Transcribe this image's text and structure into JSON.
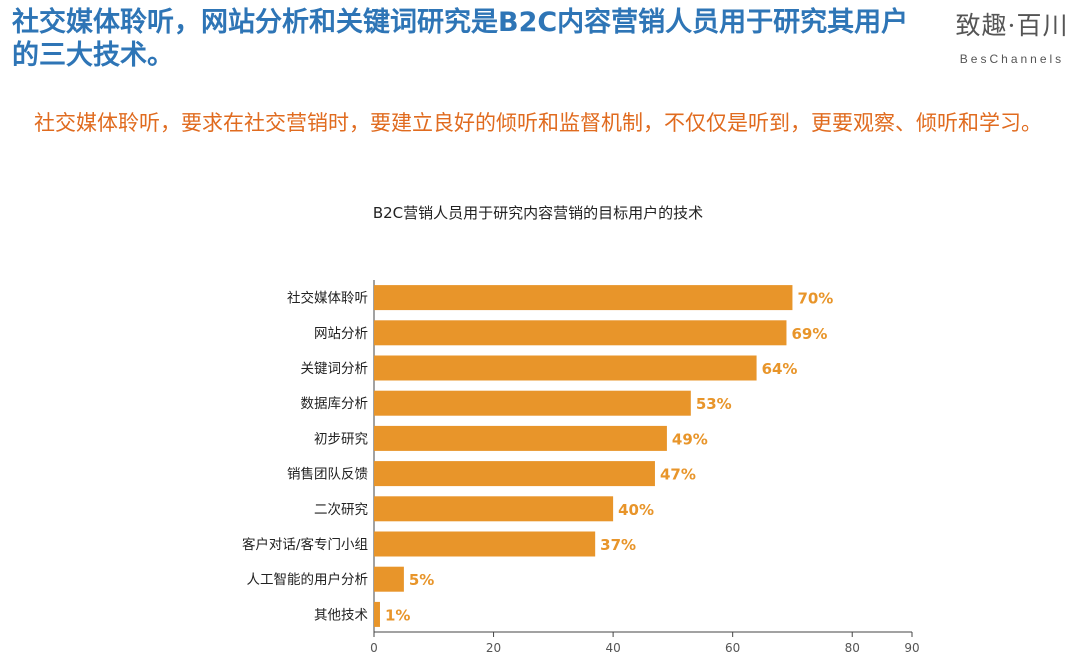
{
  "header": {
    "headline": "社交媒体聆听，网站分析和关键词研究是B2C内容营销人员用于研究其用户的三大技术。",
    "logo_cn": "致趣·百川",
    "logo_en": "BesChannels"
  },
  "intro": {
    "text": "社交媒体聆听，要求在社交营销时，要建立良好的倾听和监督机制，不仅仅是听到，更要观察、倾听和学习。"
  },
  "colors": {
    "bar": "#e8952a",
    "label": "#e8952a",
    "headline": "#2e75b6",
    "intro": "#e06b1f"
  },
  "chart_data": {
    "type": "bar",
    "orientation": "horizontal",
    "title": "B2C营销人员用于研究内容营销的目标用户的技术",
    "categories": [
      "社交媒体聆听",
      "网站分析",
      "关键词分析",
      "数据库分析",
      "初步研究",
      "销售团队反馈",
      "二次研究",
      "客户对话/客专门小组",
      "人工智能的用户分析",
      "其他技术"
    ],
    "values": [
      70,
      69,
      64,
      53,
      49,
      47,
      40,
      37,
      5,
      1
    ],
    "value_labels": [
      "70%",
      "69%",
      "64%",
      "53%",
      "49%",
      "47%",
      "40%",
      "37%",
      "5%",
      "1%"
    ],
    "xlim": [
      0,
      90
    ],
    "xticks": [
      0,
      20,
      40,
      60,
      80,
      90
    ],
    "xtick_labels": [
      "0",
      "20",
      "40",
      "60",
      "80",
      "90"
    ],
    "grid": false,
    "legend": "none"
  }
}
